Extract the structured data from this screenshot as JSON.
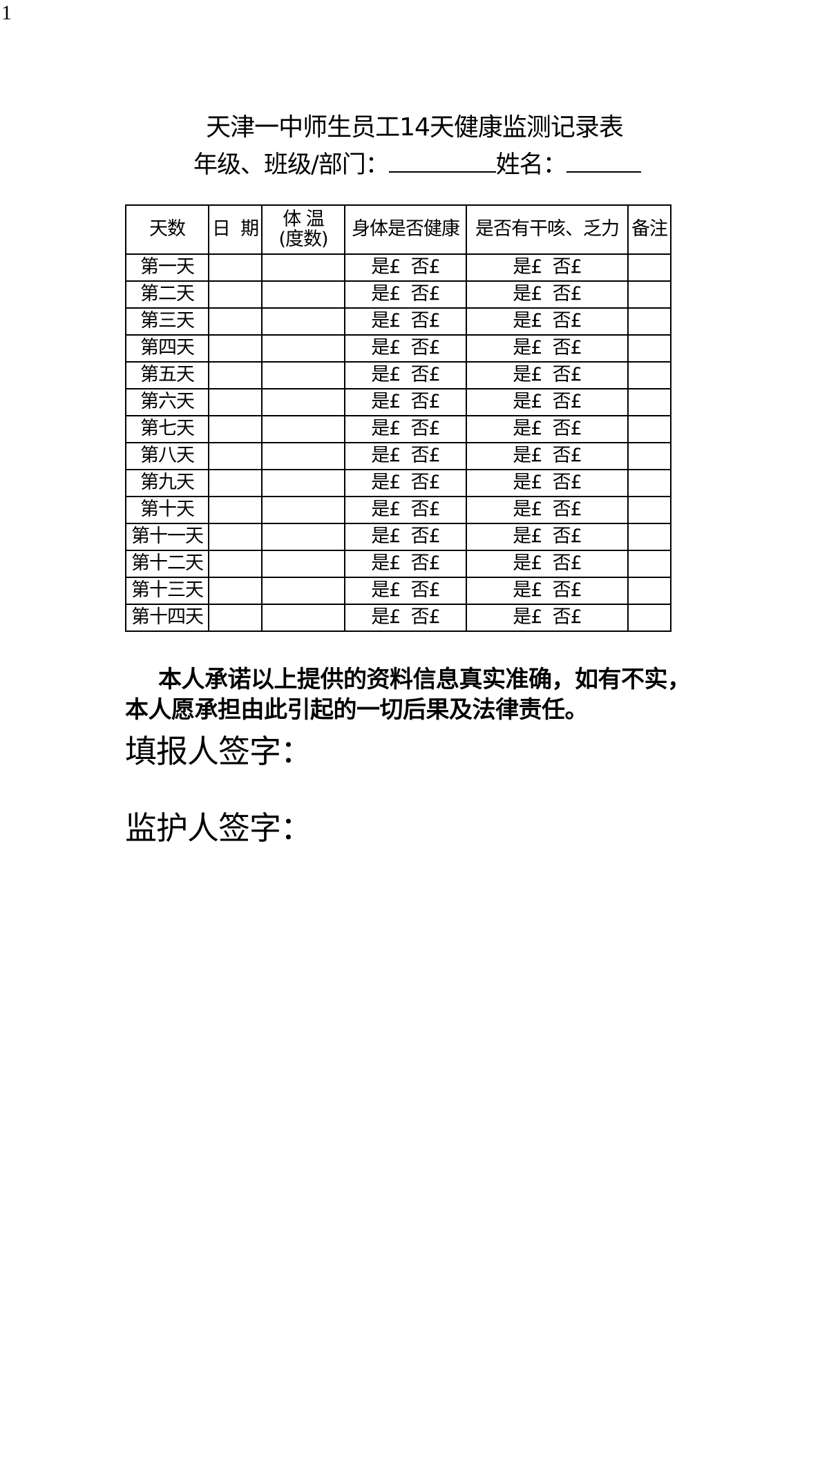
{
  "page_number": "1",
  "title": "天津一中师生员工14天健康监测记录表",
  "subtitle": {
    "grade_label": "年级、班级/部门：",
    "name_label": "姓名："
  },
  "table": {
    "headers": [
      "天数",
      "日  期",
      "体 温\n(度数)",
      "身体是否健康",
      "是否有干咳、乏力",
      "备注"
    ],
    "option_text": "是£  否£",
    "rows": [
      "第一天",
      "第二天",
      "第三天",
      "第四天",
      "第五天",
      "第六天",
      "第七天",
      "第八天",
      "第九天",
      "第十天",
      "第十一天",
      "第十二天",
      "第十三天",
      "第十四天"
    ]
  },
  "promise": "本人承诺以上提供的资料信息真实准确，如有不实，本人愿承担由此引起的一切后果及法律责任。",
  "signatures": {
    "filler": "填报人签字：",
    "guardian": "监护人签字："
  }
}
